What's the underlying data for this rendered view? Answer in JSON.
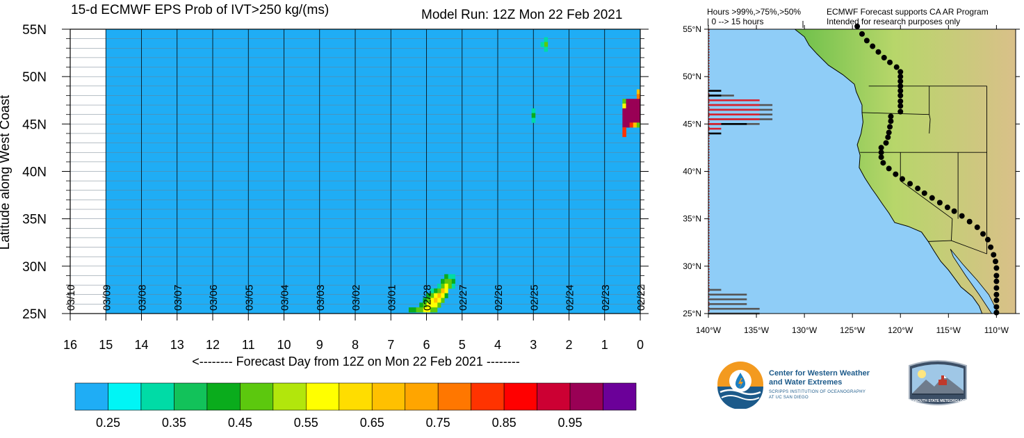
{
  "left_panel": {
    "title": "15-d ECMWF EPS Prob of IVT>250 kg/(ms)",
    "run_label": "Model Run: 12Z Mon 22 Feb 2021",
    "y_axis_label": "Latitude along West Coast",
    "x_axis_label": "<-------- Forecast Day from 12Z on Mon 22 Feb 2021 --------"
  },
  "right_panel": {
    "header_left": [
      "Hours >99%,>75%,>50%",
      "| 0 --> 15 hours"
    ],
    "header_right": [
      "ECMWF Forecast supports CA AR Program",
      "Intended for research purposes only"
    ]
  },
  "logos": {
    "cw3e_line1": "Center for Western Weather",
    "cw3e_line2": "and Water Extremes",
    "cw3e_sub1": "SCRIPPS INSTITUTION OF OCEANOGRAPHY",
    "cw3e_sub2": "AT UC SAN DIEGO",
    "psu_label": "PLYMOUTH STATE METEOROLOGY"
  },
  "colors": {
    "background_prob": "#1fadf5",
    "ocean": "#8fcdf7",
    "land_low": "#6cc04a",
    "land_high": "#d9c089",
    "black_bar": "#000000",
    "red_bar": "#d8222f",
    "gray_bar": "#555555"
  },
  "chart_data": [
    {
      "type": "heatmap",
      "title": "15-d ECMWF EPS Prob of IVT>250 kg/(ms)",
      "subtitle": "Model Run: 12Z Mon 22 Feb 2021",
      "xlabel": "<-------- Forecast Day from 12Z on Mon 22 Feb 2021 --------",
      "ylabel": "Latitude along West Coast",
      "x_ticks": [
        "16",
        "15",
        "14",
        "13",
        "12",
        "11",
        "10",
        "9",
        "8",
        "7",
        "6",
        "5",
        "4",
        "3",
        "2",
        "1",
        "0"
      ],
      "xlim": [
        16,
        0
      ],
      "y_ticks": [
        "25N",
        "30N",
        "35N",
        "40N",
        "45N",
        "50N",
        "55N"
      ],
      "ylim": [
        25,
        55
      ],
      "date_labels": [
        {
          "day": 16,
          "label": "03/10"
        },
        {
          "day": 15,
          "label": "03/09"
        },
        {
          "day": 14,
          "label": "03/08"
        },
        {
          "day": 13,
          "label": "03/07"
        },
        {
          "day": 12,
          "label": "03/06"
        },
        {
          "day": 11,
          "label": "03/05"
        },
        {
          "day": 10,
          "label": "03/04"
        },
        {
          "day": 9,
          "label": "03/03"
        },
        {
          "day": 8,
          "label": "03/02"
        },
        {
          "day": 7,
          "label": "03/01"
        },
        {
          "day": 6,
          "label": "02/28"
        },
        {
          "day": 5,
          "label": "02/27"
        },
        {
          "day": 4,
          "label": "02/26"
        },
        {
          "day": 3,
          "label": "02/25"
        },
        {
          "day": 2,
          "label": "02/24"
        },
        {
          "day": 1,
          "label": "02/23"
        },
        {
          "day": 0,
          "label": "02/22"
        }
      ],
      "forecast_range_days": [
        0,
        15
      ],
      "background_value": 0.25,
      "colorbar": {
        "colors": [
          "#1fadf5",
          "#00f5f5",
          "#00dba6",
          "#12c25a",
          "#0aac1c",
          "#5cc80e",
          "#b2e60c",
          "#ffff00",
          "#ffdd00",
          "#ffc000",
          "#ffa500",
          "#ff7700",
          "#ff3300",
          "#ff0000",
          "#cc0033",
          "#990055",
          "#6b0099"
        ],
        "tick_labels": [
          "0.25",
          "0.35",
          "0.45",
          "0.55",
          "0.65",
          "0.75",
          "0.85",
          "0.95"
        ]
      },
      "cells": [
        {
          "day": 2.65,
          "lat": 53.9,
          "v": 0.35
        },
        {
          "day": 2.65,
          "lat": 53.4,
          "v": 0.45
        },
        {
          "day": 2.75,
          "lat": 53.4,
          "v": 0.35
        },
        {
          "day": 2.65,
          "lat": 52.9,
          "v": 0.35
        },
        {
          "day": 3.0,
          "lat": 46.4,
          "v": 0.35
        },
        {
          "day": 3.0,
          "lat": 45.9,
          "v": 0.4
        },
        {
          "day": 3.0,
          "lat": 45.4,
          "v": 0.35
        },
        {
          "day": 0.05,
          "lat": 48.4,
          "v": 0.65
        },
        {
          "day": 0.05,
          "lat": 47.9,
          "v": 0.75
        },
        {
          "day": 0.45,
          "lat": 47.4,
          "v": 0.45
        },
        {
          "day": 0.35,
          "lat": 47.4,
          "v": 0.95
        },
        {
          "day": 0.25,
          "lat": 47.4,
          "v": 0.99
        },
        {
          "day": 0.15,
          "lat": 47.4,
          "v": 0.99
        },
        {
          "day": 0.05,
          "lat": 47.4,
          "v": 0.99
        },
        {
          "day": 0.45,
          "lat": 46.9,
          "v": 0.55
        },
        {
          "day": 0.35,
          "lat": 46.9,
          "v": 0.99
        },
        {
          "day": 0.25,
          "lat": 46.9,
          "v": 0.99
        },
        {
          "day": 0.15,
          "lat": 46.9,
          "v": 0.99
        },
        {
          "day": 0.05,
          "lat": 46.9,
          "v": 0.99
        },
        {
          "day": 0.45,
          "lat": 46.4,
          "v": 0.99
        },
        {
          "day": 0.35,
          "lat": 46.4,
          "v": 0.99
        },
        {
          "day": 0.25,
          "lat": 46.4,
          "v": 0.99
        },
        {
          "day": 0.15,
          "lat": 46.4,
          "v": 0.99
        },
        {
          "day": 0.05,
          "lat": 46.4,
          "v": 0.99
        },
        {
          "day": 0.45,
          "lat": 45.9,
          "v": 0.99
        },
        {
          "day": 0.35,
          "lat": 45.9,
          "v": 0.99
        },
        {
          "day": 0.25,
          "lat": 45.9,
          "v": 0.99
        },
        {
          "day": 0.15,
          "lat": 45.9,
          "v": 0.99
        },
        {
          "day": 0.05,
          "lat": 45.9,
          "v": 0.99
        },
        {
          "day": 0.45,
          "lat": 45.4,
          "v": 0.99
        },
        {
          "day": 0.35,
          "lat": 45.4,
          "v": 0.99
        },
        {
          "day": 0.25,
          "lat": 45.4,
          "v": 0.99
        },
        {
          "day": 0.15,
          "lat": 45.4,
          "v": 0.99
        },
        {
          "day": 0.05,
          "lat": 45.4,
          "v": 0.99
        },
        {
          "day": 0.45,
          "lat": 44.9,
          "v": 0.99
        },
        {
          "day": 0.35,
          "lat": 44.9,
          "v": 0.99
        },
        {
          "day": 0.25,
          "lat": 44.9,
          "v": 0.85
        },
        {
          "day": 0.15,
          "lat": 44.9,
          "v": 0.65
        },
        {
          "day": 0.05,
          "lat": 44.9,
          "v": 0.45
        },
        {
          "day": 0.45,
          "lat": 44.4,
          "v": 0.85
        },
        {
          "day": 0.45,
          "lat": 43.9,
          "v": 0.85
        },
        {
          "day": 5.25,
          "lat": 28.9,
          "v": 0.35
        },
        {
          "day": 5.35,
          "lat": 28.9,
          "v": 0.35
        },
        {
          "day": 5.45,
          "lat": 28.9,
          "v": 0.4
        },
        {
          "day": 5.25,
          "lat": 28.4,
          "v": 0.4
        },
        {
          "day": 5.35,
          "lat": 28.4,
          "v": 0.45
        },
        {
          "day": 5.45,
          "lat": 28.4,
          "v": 0.5
        },
        {
          "day": 5.55,
          "lat": 28.4,
          "v": 0.4
        },
        {
          "day": 5.25,
          "lat": 27.9,
          "v": 0.35
        },
        {
          "day": 5.35,
          "lat": 27.9,
          "v": 0.5
        },
        {
          "day": 5.45,
          "lat": 27.9,
          "v": 0.6
        },
        {
          "day": 5.55,
          "lat": 27.9,
          "v": 0.45
        },
        {
          "day": 5.65,
          "lat": 27.9,
          "v": 0.35
        },
        {
          "day": 5.45,
          "lat": 27.4,
          "v": 0.55
        },
        {
          "day": 5.55,
          "lat": 27.4,
          "v": 0.65
        },
        {
          "day": 5.65,
          "lat": 27.4,
          "v": 0.5
        },
        {
          "day": 5.75,
          "lat": 27.4,
          "v": 0.4
        },
        {
          "day": 5.85,
          "lat": 27.4,
          "v": 0.35
        },
        {
          "day": 5.45,
          "lat": 26.9,
          "v": 0.4
        },
        {
          "day": 5.55,
          "lat": 26.9,
          "v": 0.6
        },
        {
          "day": 5.65,
          "lat": 26.9,
          "v": 0.7
        },
        {
          "day": 5.75,
          "lat": 26.9,
          "v": 0.55
        },
        {
          "day": 5.85,
          "lat": 26.9,
          "v": 0.45
        },
        {
          "day": 5.95,
          "lat": 26.9,
          "v": 0.4
        },
        {
          "day": 5.55,
          "lat": 26.4,
          "v": 0.45
        },
        {
          "day": 5.65,
          "lat": 26.4,
          "v": 0.6
        },
        {
          "day": 5.75,
          "lat": 26.4,
          "v": 0.65
        },
        {
          "day": 5.85,
          "lat": 26.4,
          "v": 0.55
        },
        {
          "day": 5.95,
          "lat": 26.4,
          "v": 0.45
        },
        {
          "day": 6.05,
          "lat": 26.4,
          "v": 0.4
        },
        {
          "day": 5.65,
          "lat": 25.9,
          "v": 0.45
        },
        {
          "day": 5.75,
          "lat": 25.9,
          "v": 0.55
        },
        {
          "day": 5.85,
          "lat": 25.9,
          "v": 0.6
        },
        {
          "day": 5.95,
          "lat": 25.9,
          "v": 0.55
        },
        {
          "day": 6.05,
          "lat": 25.9,
          "v": 0.5
        },
        {
          "day": 6.15,
          "lat": 25.9,
          "v": 0.4
        },
        {
          "day": 5.75,
          "lat": 25.4,
          "v": 0.45
        },
        {
          "day": 5.85,
          "lat": 25.4,
          "v": 0.5
        },
        {
          "day": 5.95,
          "lat": 25.4,
          "v": 0.6
        },
        {
          "day": 6.05,
          "lat": 25.4,
          "v": 0.55
        },
        {
          "day": 6.15,
          "lat": 25.4,
          "v": 0.5
        },
        {
          "day": 6.25,
          "lat": 25.4,
          "v": 0.45
        },
        {
          "day": 6.35,
          "lat": 25.4,
          "v": 0.4
        },
        {
          "day": 6.45,
          "lat": 25.4,
          "v": 0.4
        }
      ]
    },
    {
      "type": "bar",
      "title": "",
      "header": [
        "Hours >99%,>75%,>50%",
        "| 0 --> 15 hours"
      ],
      "x_ticks": [
        "140°W",
        "135°W",
        "130°W",
        "125°W",
        "120°W",
        "115°W",
        "110°W"
      ],
      "xlim": [
        -140,
        -108
      ],
      "y_ticks": [
        "25°N",
        "30°N",
        "35°N",
        "40°N",
        "45°N",
        "50°N",
        "55°N"
      ],
      "ylim": [
        25,
        55
      ],
      "bars": [
        {
          "lat": 48.5,
          "series": ">99%",
          "hours": 2
        },
        {
          "lat": 48.0,
          "series": ">99%",
          "hours": 2
        },
        {
          "lat": 48.0,
          "series": ">50%",
          "hours": 4
        },
        {
          "lat": 47.5,
          "series": ">75%",
          "hours": 8
        },
        {
          "lat": 47.0,
          "series": ">75%",
          "hours": 8
        },
        {
          "lat": 47.0,
          "series": ">50%",
          "hours": 10
        },
        {
          "lat": 46.5,
          "series": ">75%",
          "hours": 8
        },
        {
          "lat": 46.5,
          "series": ">50%",
          "hours": 10
        },
        {
          "lat": 46.0,
          "series": ">75%",
          "hours": 8
        },
        {
          "lat": 46.0,
          "series": ">50%",
          "hours": 10
        },
        {
          "lat": 45.5,
          "series": ">75%",
          "hours": 8
        },
        {
          "lat": 45.5,
          "series": ">50%",
          "hours": 10
        },
        {
          "lat": 45.0,
          "series": ">75%",
          "hours": 2
        },
        {
          "lat": 45.0,
          "series": ">99%",
          "hours": 6
        },
        {
          "lat": 45.0,
          "series": ">50%",
          "hours": 8
        },
        {
          "lat": 44.5,
          "series": ">75%",
          "hours": 2
        },
        {
          "lat": 44.0,
          "series": ">99%",
          "hours": 2
        },
        {
          "lat": 27.5,
          "series": ">50%",
          "hours": 2
        },
        {
          "lat": 27.0,
          "series": ">50%",
          "hours": 6
        },
        {
          "lat": 26.5,
          "series": ">50%",
          "hours": 6
        },
        {
          "lat": 26.0,
          "series": ">50%",
          "hours": 6
        },
        {
          "lat": 25.5,
          "series": ">50%",
          "hours": 8
        },
        {
          "lat": 25.0,
          "series": ">50%",
          "hours": 8
        }
      ],
      "coast_points": [
        [
          -124.5,
          55.3
        ],
        [
          -124.0,
          54.5
        ],
        [
          -123.5,
          53.8
        ],
        [
          -122.9,
          53.2
        ],
        [
          -122.3,
          52.6
        ],
        [
          -121.7,
          52.0
        ],
        [
          -121.1,
          51.5
        ],
        [
          -120.4,
          51.0
        ],
        [
          -120.0,
          50.5
        ],
        [
          -120.0,
          50.0
        ],
        [
          -120.0,
          49.5
        ],
        [
          -120.0,
          49.0
        ],
        [
          -120.0,
          48.5
        ],
        [
          -120.0,
          48.0
        ],
        [
          -120.0,
          47.4
        ],
        [
          -120.0,
          46.9
        ],
        [
          -120.0,
          46.3
        ],
        [
          -121.0,
          45.8
        ],
        [
          -121.0,
          45.3
        ],
        [
          -121.1,
          44.7
        ],
        [
          -121.2,
          44.1
        ],
        [
          -121.3,
          43.6
        ],
        [
          -121.5,
          43.0
        ],
        [
          -122.0,
          42.5
        ],
        [
          -122.0,
          42.0
        ],
        [
          -122.0,
          41.5
        ],
        [
          -121.8,
          40.9
        ],
        [
          -121.2,
          40.3
        ],
        [
          -120.5,
          39.7
        ],
        [
          -119.8,
          39.2
        ],
        [
          -119.0,
          38.7
        ],
        [
          -118.2,
          38.2
        ],
        [
          -117.5,
          37.7
        ],
        [
          -116.7,
          37.2
        ],
        [
          -115.9,
          36.7
        ],
        [
          -115.1,
          36.2
        ],
        [
          -114.4,
          35.8
        ],
        [
          -113.6,
          35.3
        ],
        [
          -112.8,
          34.7
        ],
        [
          -112.0,
          34.1
        ],
        [
          -111.4,
          33.4
        ],
        [
          -110.9,
          32.8
        ],
        [
          -110.6,
          32.0
        ],
        [
          -110.3,
          31.2
        ],
        [
          -110.1,
          30.5
        ],
        [
          -110.0,
          29.8
        ],
        [
          -110.0,
          29.0
        ],
        [
          -110.0,
          28.4
        ],
        [
          -110.0,
          27.7
        ],
        [
          -110.0,
          27.0
        ],
        [
          -110.0,
          26.4
        ],
        [
          -110.0,
          25.7
        ],
        [
          -110.0,
          25.1
        ]
      ]
    }
  ]
}
